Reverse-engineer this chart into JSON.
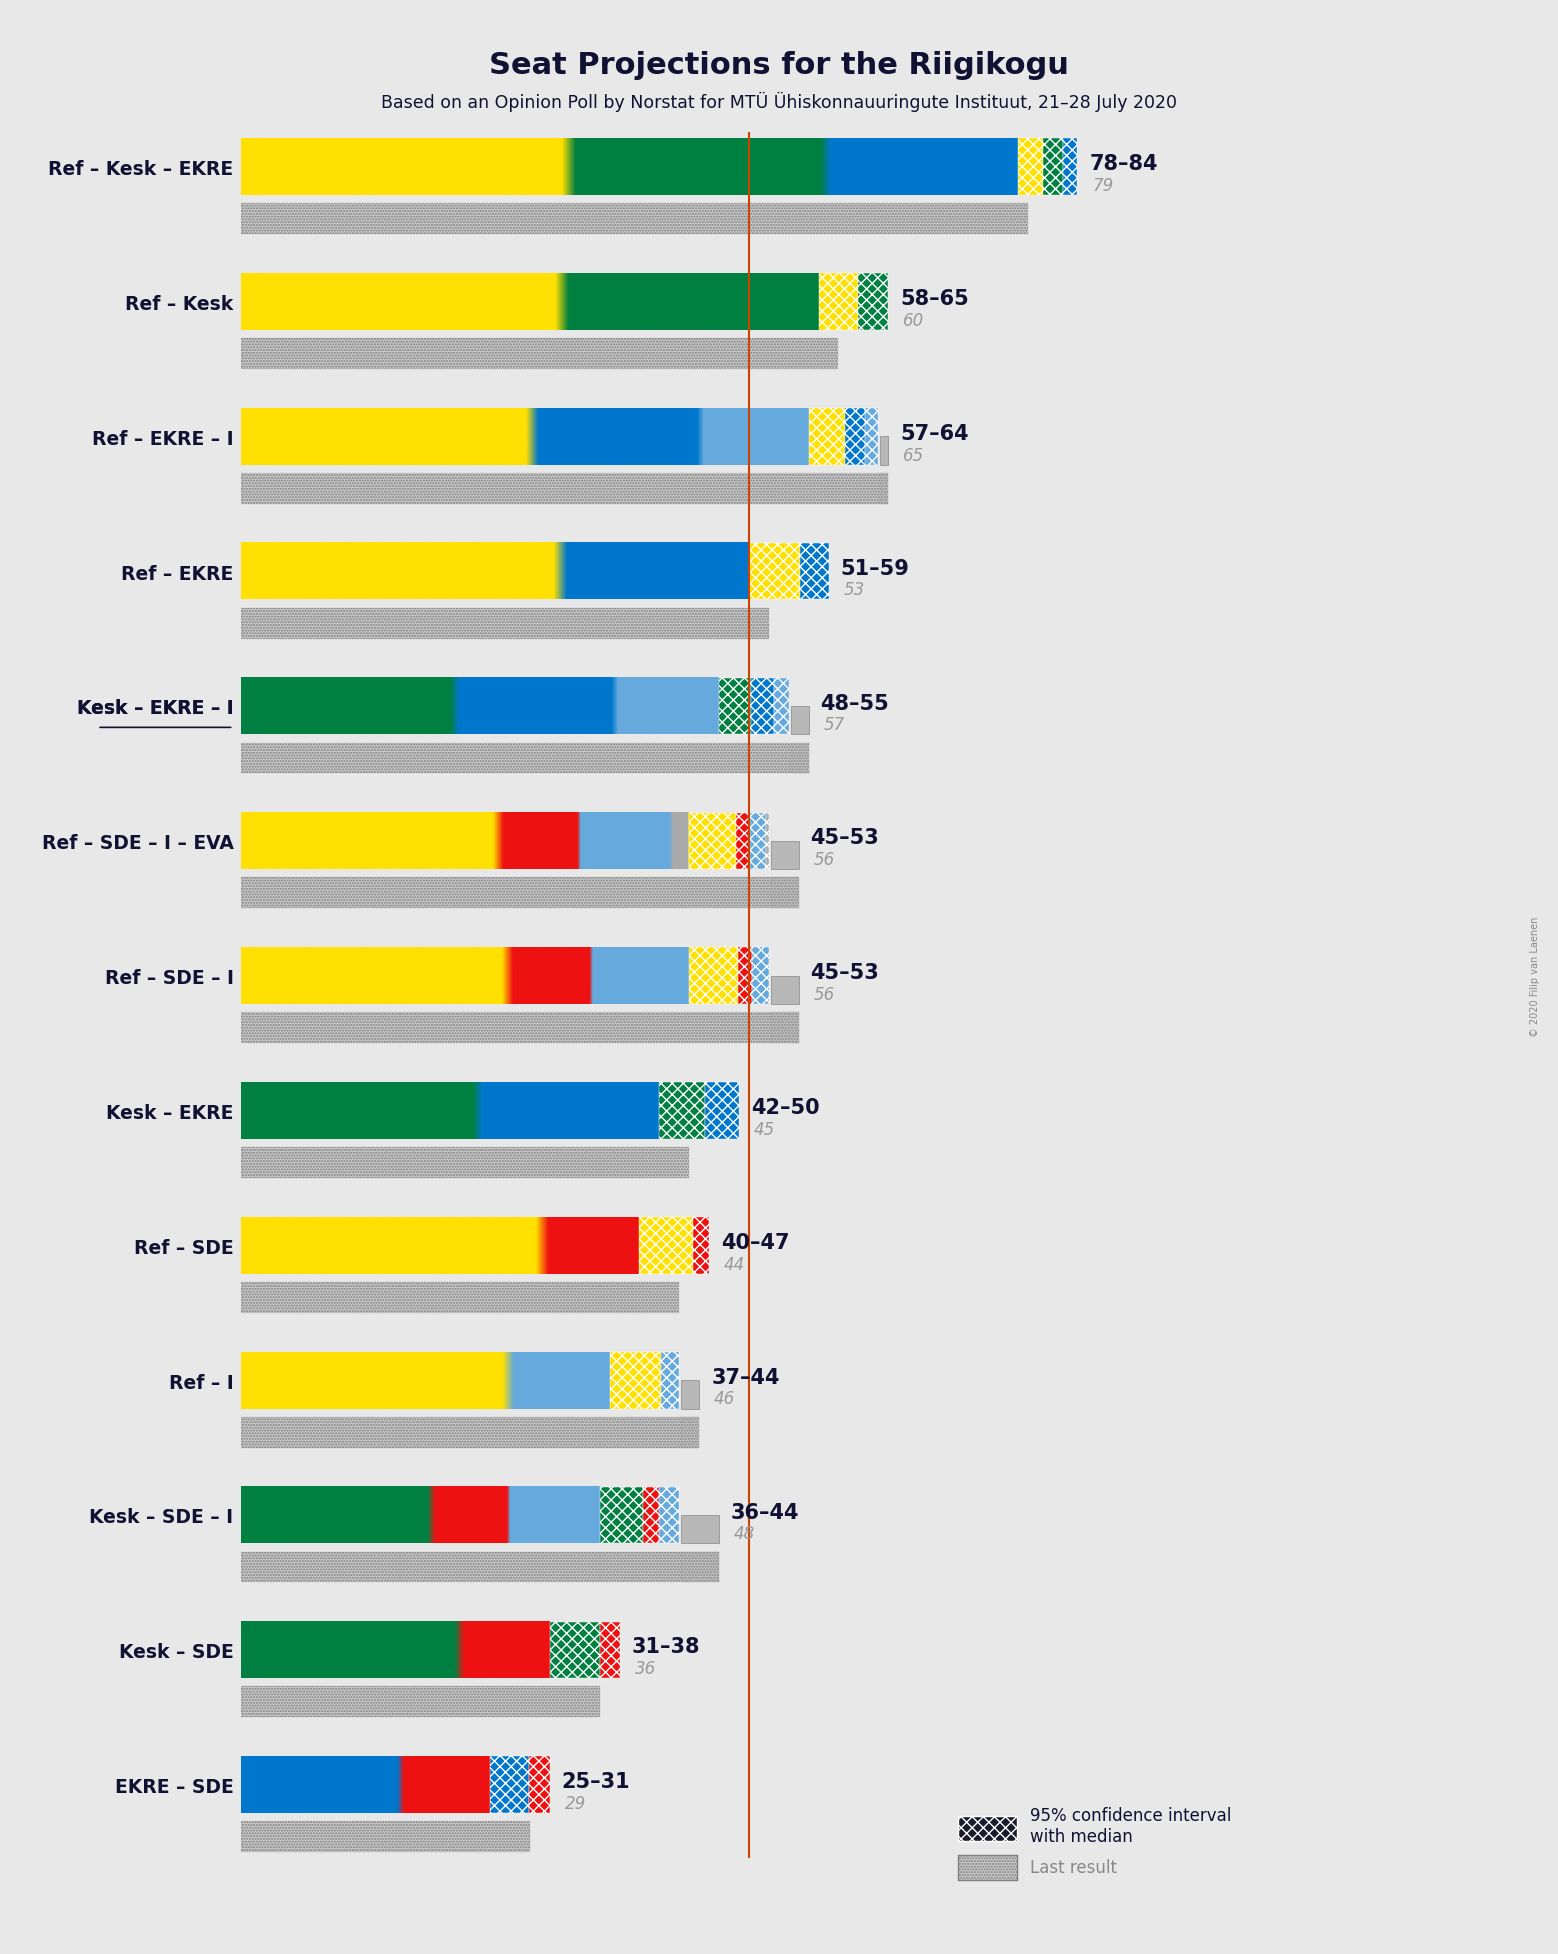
{
  "title": "Seat Projections for the Riigikogu",
  "subtitle": "Based on an Opinion Poll by Norstat for MTÜ Ühiskonnauuringute Instituut, 21–28 July 2020",
  "copyright": "© 2020 Filip van Laenen",
  "majority_line": 51,
  "xlim_max": 101,
  "background_color": "#e8e8e8",
  "coalitions": [
    {
      "name": "Ref – Kesk – EKRE",
      "underline": false,
      "ci_low": 78,
      "ci_high": 84,
      "median": 79,
      "last_result": 79,
      "segments": [
        {
          "color": "#FFE000",
          "seats": 34
        },
        {
          "color": "#008040",
          "seats": 26
        },
        {
          "color": "#0077CC",
          "seats": 19
        }
      ]
    },
    {
      "name": "Ref – Kesk",
      "underline": false,
      "ci_low": 58,
      "ci_high": 65,
      "median": 60,
      "last_result": 60,
      "segments": [
        {
          "color": "#FFE000",
          "seats": 34
        },
        {
          "color": "#008040",
          "seats": 26
        }
      ]
    },
    {
      "name": "Ref – EKRE – I",
      "underline": false,
      "ci_low": 57,
      "ci_high": 64,
      "median": 65,
      "last_result": 65,
      "segments": [
        {
          "color": "#FFE000",
          "seats": 34
        },
        {
          "color": "#0077CC",
          "seats": 19
        },
        {
          "color": "#66AADD",
          "seats": 12
        }
      ]
    },
    {
      "name": "Ref – EKRE",
      "underline": false,
      "ci_low": 51,
      "ci_high": 59,
      "median": 53,
      "last_result": 53,
      "segments": [
        {
          "color": "#FFE000",
          "seats": 34
        },
        {
          "color": "#0077CC",
          "seats": 19
        }
      ]
    },
    {
      "name": "Kesk – EKRE – I",
      "underline": true,
      "ci_low": 48,
      "ci_high": 55,
      "median": 57,
      "last_result": 57,
      "segments": [
        {
          "color": "#008040",
          "seats": 26
        },
        {
          "color": "#0077CC",
          "seats": 19
        },
        {
          "color": "#66AADD",
          "seats": 12
        }
      ]
    },
    {
      "name": "Ref – SDE – I – EVA",
      "underline": false,
      "ci_low": 45,
      "ci_high": 53,
      "median": 56,
      "last_result": 56,
      "segments": [
        {
          "color": "#FFE000",
          "seats": 34
        },
        {
          "color": "#EE1111",
          "seats": 10
        },
        {
          "color": "#66AADD",
          "seats": 12
        },
        {
          "color": "#AAAAAA",
          "seats": 2
        }
      ]
    },
    {
      "name": "Ref – SDE – I",
      "underline": false,
      "ci_low": 45,
      "ci_high": 53,
      "median": 56,
      "last_result": 56,
      "segments": [
        {
          "color": "#FFE000",
          "seats": 34
        },
        {
          "color": "#EE1111",
          "seats": 10
        },
        {
          "color": "#66AADD",
          "seats": 12
        }
      ]
    },
    {
      "name": "Kesk – EKRE",
      "underline": false,
      "ci_low": 42,
      "ci_high": 50,
      "median": 45,
      "last_result": 45,
      "segments": [
        {
          "color": "#008040",
          "seats": 26
        },
        {
          "color": "#0077CC",
          "seats": 19
        }
      ]
    },
    {
      "name": "Ref – SDE",
      "underline": false,
      "ci_low": 40,
      "ci_high": 47,
      "median": 44,
      "last_result": 44,
      "segments": [
        {
          "color": "#FFE000",
          "seats": 34
        },
        {
          "color": "#EE1111",
          "seats": 10
        }
      ]
    },
    {
      "name": "Ref – I",
      "underline": false,
      "ci_low": 37,
      "ci_high": 44,
      "median": 46,
      "last_result": 46,
      "segments": [
        {
          "color": "#FFE000",
          "seats": 34
        },
        {
          "color": "#66AADD",
          "seats": 12
        }
      ]
    },
    {
      "name": "Kesk – SDE – I",
      "underline": false,
      "ci_low": 36,
      "ci_high": 44,
      "median": 48,
      "last_result": 48,
      "segments": [
        {
          "color": "#008040",
          "seats": 26
        },
        {
          "color": "#EE1111",
          "seats": 10
        },
        {
          "color": "#66AADD",
          "seats": 12
        }
      ]
    },
    {
      "name": "Kesk – SDE",
      "underline": false,
      "ci_low": 31,
      "ci_high": 38,
      "median": 36,
      "last_result": 36,
      "segments": [
        {
          "color": "#008040",
          "seats": 26
        },
        {
          "color": "#EE1111",
          "seats": 10
        }
      ]
    },
    {
      "name": "EKRE – SDE",
      "underline": false,
      "ci_low": 25,
      "ci_high": 31,
      "median": 29,
      "last_result": 29,
      "segments": [
        {
          "color": "#0077CC",
          "seats": 19
        },
        {
          "color": "#EE1111",
          "seats": 10
        }
      ]
    }
  ]
}
